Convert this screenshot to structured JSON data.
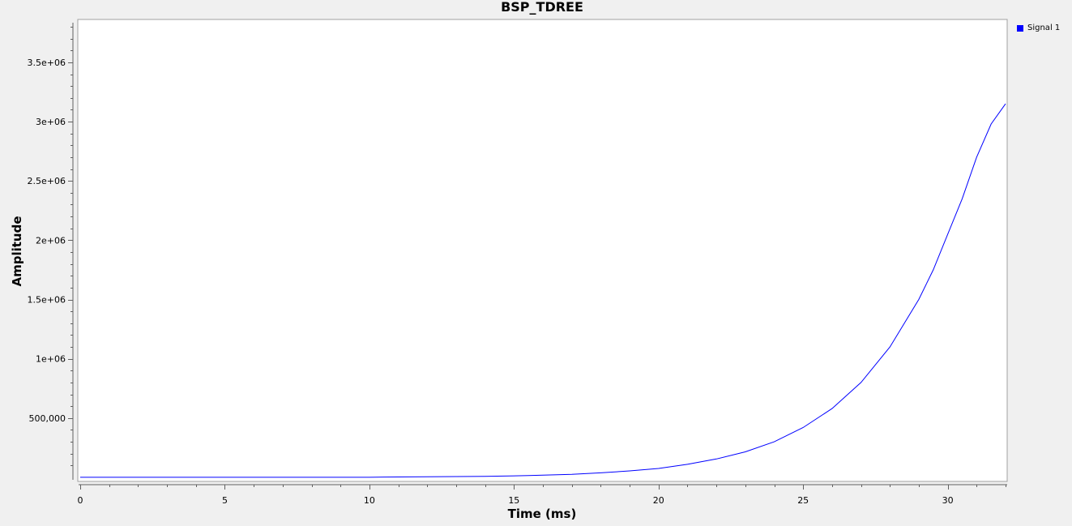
{
  "chart_data": {
    "type": "line",
    "title": "BSP_TDREE",
    "xlabel": "Time (ms)",
    "ylabel": "Amplitude",
    "xlim": [
      0,
      32
    ],
    "ylim": [
      0,
      3800000
    ],
    "x_ticks": [
      0,
      5,
      10,
      15,
      20,
      25,
      30
    ],
    "x_tick_labels": [
      "0",
      "5",
      "10",
      "15",
      "20",
      "25",
      "30"
    ],
    "y_ticks": [
      500000,
      1000000,
      1500000,
      2000000,
      2500000,
      3000000,
      3500000
    ],
    "y_tick_labels": [
      "500,000",
      "1e+06",
      "1.5e+06",
      "2e+06",
      "2.5e+06",
      "3e+06",
      "3.5e+06"
    ],
    "legend_position": "top-right",
    "series": [
      {
        "name": "Signal 1",
        "color": "#0000ff",
        "x": [
          0,
          2,
          4,
          6,
          8,
          10,
          10.5,
          12,
          14,
          15.5,
          17,
          18,
          19,
          20,
          21,
          22,
          23,
          24,
          25,
          26,
          27,
          28,
          29,
          29.5,
          30,
          30.5,
          31,
          31.5,
          32
        ],
        "y": [
          1000,
          1000,
          1000,
          1000,
          1000,
          1000,
          3000,
          5000,
          8000,
          15000,
          25000,
          38000,
          55000,
          75000,
          110000,
          155000,
          215000,
          300000,
          420000,
          580000,
          800000,
          1100000,
          1500000,
          1750000,
          2050000,
          2350000,
          2700000,
          2980000,
          3150000
        ]
      }
    ]
  }
}
